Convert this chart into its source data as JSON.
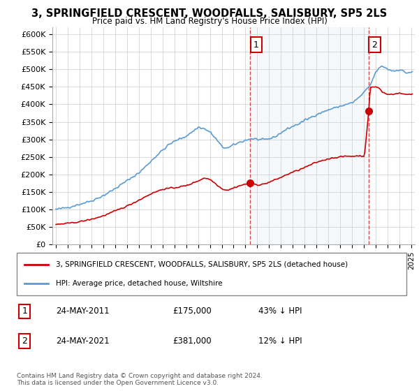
{
  "title": "3, SPRINGFIELD CRESCENT, WOODFALLS, SALISBURY, SP5 2LS",
  "subtitle": "Price paid vs. HM Land Registry's House Price Index (HPI)",
  "ylabel_ticks": [
    "£0",
    "£50K",
    "£100K",
    "£150K",
    "£200K",
    "£250K",
    "£300K",
    "£350K",
    "£400K",
    "£450K",
    "£500K",
    "£550K",
    "£600K"
  ],
  "ylim": [
    0,
    620000
  ],
  "ytick_values": [
    0,
    50000,
    100000,
    150000,
    200000,
    250000,
    300000,
    350000,
    400000,
    450000,
    500000,
    550000,
    600000
  ],
  "hpi_color": "#5b9bd5",
  "hpi_fill_color": "#dce9f5",
  "price_color": "#cc0000",
  "dashed_line_color": "#cc0000",
  "sale1_year": 2011.38,
  "sale1_price": 175000,
  "sale2_year": 2021.38,
  "sale2_price": 381000,
  "legend_label_price": "3, SPRINGFIELD CRESCENT, WOODFALLS, SALISBURY, SP5 2LS (detached house)",
  "legend_label_hpi": "HPI: Average price, detached house, Wiltshire",
  "annotation1_date": "24-MAY-2011",
  "annotation1_price": "£175,000",
  "annotation1_hpi": "43% ↓ HPI",
  "annotation2_date": "24-MAY-2021",
  "annotation2_price": "£381,000",
  "annotation2_hpi": "12% ↓ HPI",
  "footer": "Contains HM Land Registry data © Crown copyright and database right 2024.\nThis data is licensed under the Open Government Licence v3.0.",
  "background_color": "#ffffff",
  "grid_color": "#cccccc"
}
